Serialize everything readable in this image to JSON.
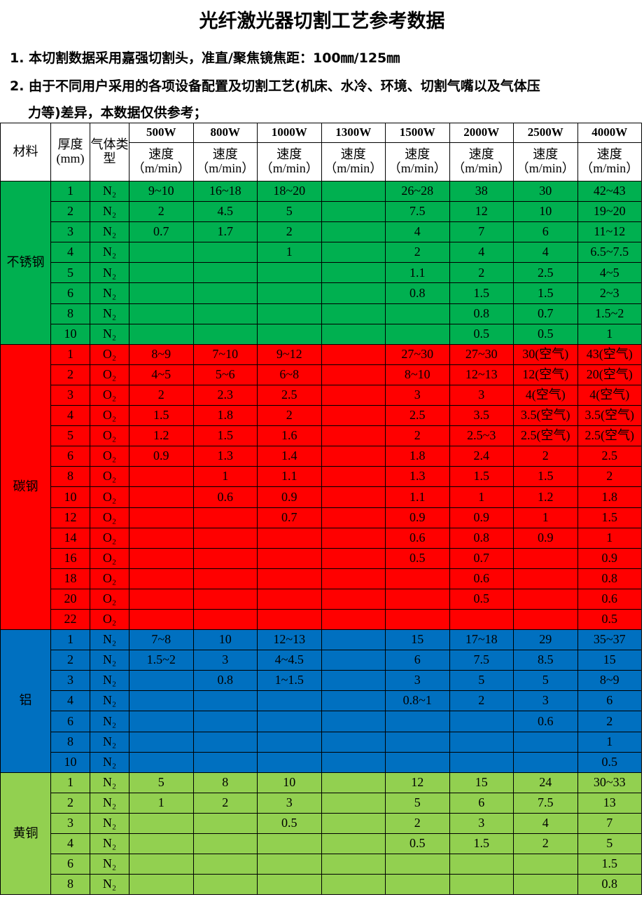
{
  "title": "光纤激光器切割工艺参考数据",
  "notes": [
    "1. 本切割数据采用嘉强切割头，准直/聚焦镜焦距：100㎜/125㎜",
    "2. 由于不同用户采用的各项设备配置及切割工艺(机床、水冷、环境、切割气嘴以及气体压",
    "力等)差异，本数据仅供参考；"
  ],
  "header": {
    "material": "材料",
    "thickness": "厚度(mm)",
    "gas": "气体类型",
    "speed": "速度（m/min）",
    "powers": [
      "500W",
      "800W",
      "1000W",
      "1300W",
      "1500W",
      "2000W",
      "2500W",
      "4000W"
    ]
  },
  "colors": {
    "不锈钢": "#00b050",
    "碳钢": "#ff0000",
    "铝": "#0070c0",
    "黄铜": "#92d050"
  },
  "groups": [
    {
      "material": "不锈钢",
      "rows": [
        [
          "1",
          "N₂",
          "9~10",
          "16~18",
          "18~20",
          "",
          "26~28",
          "38",
          "30",
          "42~43"
        ],
        [
          "2",
          "N₂",
          "2",
          "4.5",
          "5",
          "",
          "7.5",
          "12",
          "10",
          "19~20"
        ],
        [
          "3",
          "N₂",
          "0.7",
          "1.7",
          "2",
          "",
          "4",
          "7",
          "6",
          "11~12"
        ],
        [
          "4",
          "N₂",
          "",
          "",
          "1",
          "",
          "2",
          "4",
          "4",
          "6.5~7.5"
        ],
        [
          "5",
          "N₂",
          "",
          "",
          "",
          "",
          "1.1",
          "2",
          "2.5",
          "4~5"
        ],
        [
          "6",
          "N₂",
          "",
          "",
          "",
          "",
          "0.8",
          "1.5",
          "1.5",
          "2~3"
        ],
        [
          "8",
          "N₂",
          "",
          "",
          "",
          "",
          "",
          "0.8",
          "0.7",
          "1.5~2"
        ],
        [
          "10",
          "N₂",
          "",
          "",
          "",
          "",
          "",
          "0.5",
          "0.5",
          "1"
        ]
      ]
    },
    {
      "material": "碳钢",
      "rows": [
        [
          "1",
          "O₂",
          "8~9",
          "7~10",
          "9~12",
          "",
          "27~30",
          "27~30",
          "30(空气)",
          "43(空气)"
        ],
        [
          "2",
          "O₂",
          "4~5",
          "5~6",
          "6~8",
          "",
          "8~10",
          "12~13",
          "12(空气)",
          "20(空气)"
        ],
        [
          "3",
          "O₂",
          "2",
          "2.3",
          "2.5",
          "",
          "3",
          "3",
          "4(空气)",
          "4(空气)"
        ],
        [
          "4",
          "O₂",
          "1.5",
          "1.8",
          "2",
          "",
          "2.5",
          "3.5",
          "3.5(空气)",
          "3.5(空气)"
        ],
        [
          "5",
          "O₂",
          "1.2",
          "1.5",
          "1.6",
          "",
          "2",
          "2.5~3",
          "2.5(空气)",
          "2.5(空气)"
        ],
        [
          "6",
          "O₂",
          "0.9",
          "1.3",
          "1.4",
          "",
          "1.8",
          "2.4",
          "2",
          "2.5"
        ],
        [
          "8",
          "O₂",
          "",
          "1",
          "1.1",
          "",
          "1.3",
          "1.5",
          "1.5",
          "2"
        ],
        [
          "10",
          "O₂",
          "",
          "0.6",
          "0.9",
          "",
          "1.1",
          "1",
          "1.2",
          "1.8"
        ],
        [
          "12",
          "O₂",
          "",
          "",
          "0.7",
          "",
          "0.9",
          "0.9",
          "1",
          "1.5"
        ],
        [
          "14",
          "O₂",
          "",
          "",
          "",
          "",
          "0.6",
          "0.8",
          "0.9",
          "1"
        ],
        [
          "16",
          "O₂",
          "",
          "",
          "",
          "",
          "0.5",
          "0.7",
          "",
          "0.9"
        ],
        [
          "18",
          "O₂",
          "",
          "",
          "",
          "",
          "",
          "0.6",
          "",
          "0.8"
        ],
        [
          "20",
          "O₂",
          "",
          "",
          "",
          "",
          "",
          "0.5",
          "",
          "0.6"
        ],
        [
          "22",
          "O₂",
          "",
          "",
          "",
          "",
          "",
          "",
          "",
          "0.5"
        ]
      ]
    },
    {
      "material": "铝",
      "rows": [
        [
          "1",
          "N₂",
          "7~8",
          "10",
          "12~13",
          "",
          "15",
          "17~18",
          "29",
          "35~37"
        ],
        [
          "2",
          "N₂",
          "1.5~2",
          "3",
          "4~4.5",
          "",
          "6",
          "7.5",
          "8.5",
          "15"
        ],
        [
          "3",
          "N₂",
          "",
          "0.8",
          "1~1.5",
          "",
          "3",
          "5",
          "5",
          "8~9"
        ],
        [
          "4",
          "N₂",
          "",
          "",
          "",
          "",
          "0.8~1",
          "2",
          "3",
          "6"
        ],
        [
          "6",
          "N₂",
          "",
          "",
          "",
          "",
          "",
          "",
          "0.6",
          "2"
        ],
        [
          "8",
          "N₂",
          "",
          "",
          "",
          "",
          "",
          "",
          "",
          "1"
        ],
        [
          "10",
          "N₂",
          "",
          "",
          "",
          "",
          "",
          "",
          "",
          "0.5"
        ]
      ]
    },
    {
      "material": "黄铜",
      "rows": [
        [
          "1",
          "N₂",
          "5",
          "8",
          "10",
          "",
          "12",
          "15",
          "24",
          "30~33"
        ],
        [
          "2",
          "N₂",
          "1",
          "2",
          "3",
          "",
          "5",
          "6",
          "7.5",
          "13"
        ],
        [
          "3",
          "N₂",
          "",
          "",
          "0.5",
          "",
          "2",
          "3",
          "4",
          "7"
        ],
        [
          "4",
          "N₂",
          "",
          "",
          "",
          "",
          "0.5",
          "1.5",
          "2",
          "5"
        ],
        [
          "6",
          "N₂",
          "",
          "",
          "",
          "",
          "",
          "",
          "",
          "1.5"
        ],
        [
          "8",
          "N₂",
          "",
          "",
          "",
          "",
          "",
          "",
          "",
          "0.8"
        ]
      ]
    }
  ]
}
